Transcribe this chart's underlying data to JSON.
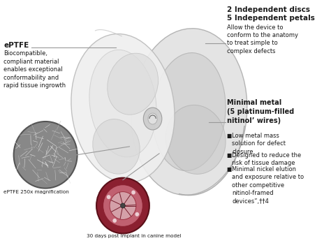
{
  "bg_color": "#ffffff",
  "left_title": "ePTFE",
  "left_body": "Biocompatible,\ncompliant material\nenables exceptional\nconformability and\nrapid tissue ingrowth",
  "left_caption1": "ePTFE 250x magnification",
  "left_caption2": "30 days post implant in canine model",
  "right_title1": "2 Independent discs",
  "right_title2": "5 Independent petals",
  "right_body1": "Allow the device to\nconform to the anatomy\nto treat simple to\ncomplex defects",
  "right_title3": "Minimal metal\n(5 platinum-filled\nnitinol’ wires)",
  "bullet1": "Low metal mass\nsolution for defect\nclosure",
  "bullet2": "Designed to reduce the\nrisk of tissue damage",
  "bullet3": "Minimal nickel elution\nand exposure relative to\nother competitive\nnitinol-framed\ndevices”,††4",
  "line_color": "#999999",
  "text_color": "#1a1a1a",
  "bullet_symbol": "■"
}
